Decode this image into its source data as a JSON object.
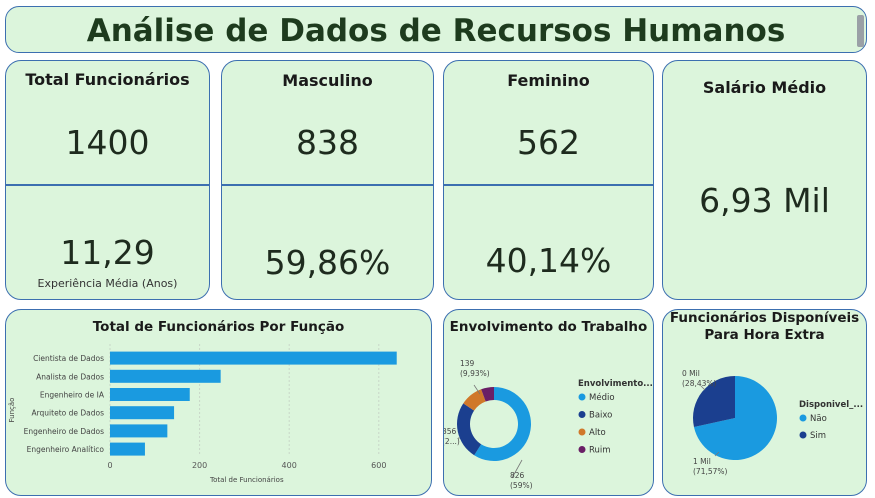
{
  "header": {
    "title": "Análise de Dados de Recursos Humanos"
  },
  "kpis": {
    "total": {
      "label": "Total Funcionários",
      "value": "1400",
      "exp_value": "11,29",
      "exp_label": "Experiência Média (Anos)"
    },
    "male": {
      "label": "Masculino",
      "value": "838",
      "pct": "59,86%"
    },
    "female": {
      "label": "Feminino",
      "value": "562",
      "pct": "40,14%"
    },
    "salary": {
      "label": "Salário Médio",
      "value": "6,93 Mil"
    }
  },
  "role_chart": {
    "title": "Total de Funcionários Por Função"
  },
  "engagement_chart": {
    "title": "Envolvimento do Trabalho"
  },
  "overtime_chart": {
    "title_line1": "Funcionários Disponíveis",
    "title_line2": "Para Hora Extra"
  },
  "colors": {
    "bar": "#1a9ae0",
    "medio": "#1a9ae0",
    "baixo": "#1b3f8f",
    "alto": "#d0782a",
    "ruim": "#6a1f66",
    "nao": "#1a9ae0",
    "sim": "#1b3f8f"
  },
  "chart_data": [
    {
      "type": "bar",
      "orientation": "horizontal",
      "title": "Total de Funcionários Por Função",
      "xlabel": "Total de Funcionários",
      "ylabel": "Função",
      "categories": [
        "Cientista de Dados",
        "Analista de Dados",
        "Engenheiro de IA",
        "Arquiteto de Dados",
        "Engenheiro de Dados",
        "Engenheiro Analítico"
      ],
      "values": [
        640,
        247,
        178,
        143,
        128,
        78
      ],
      "xlim": [
        0,
        700
      ],
      "xticks": [
        "0",
        "200",
        "400",
        "600"
      ]
    },
    {
      "type": "pie",
      "donut": true,
      "title": "Envolvimento do Trabalho",
      "legend_title": "Envolvimento...",
      "legend_position": "right",
      "categories": [
        "Médio",
        "Baixo",
        "Alto",
        "Ruim"
      ],
      "values": [
        826,
        356,
        139,
        79
      ],
      "data_labels": [
        {
          "line1": "826",
          "line2": "(59%)"
        },
        {
          "line1": "356",
          "line2": "(2...)"
        },
        {
          "line1": "139",
          "line2": "(9,93%)"
        }
      ]
    },
    {
      "type": "pie",
      "title": "Funcionários Disponíveis Para Hora Extra",
      "legend_title": "Disponivel_...",
      "legend_position": "right",
      "categories": [
        "Não",
        "Sim"
      ],
      "values": [
        1002,
        398
      ],
      "data_labels": [
        {
          "line1": "1 Mil",
          "line2": "(71,57%)"
        },
        {
          "line1": "0 Mil",
          "line2": "(28,43%)"
        }
      ]
    }
  ]
}
